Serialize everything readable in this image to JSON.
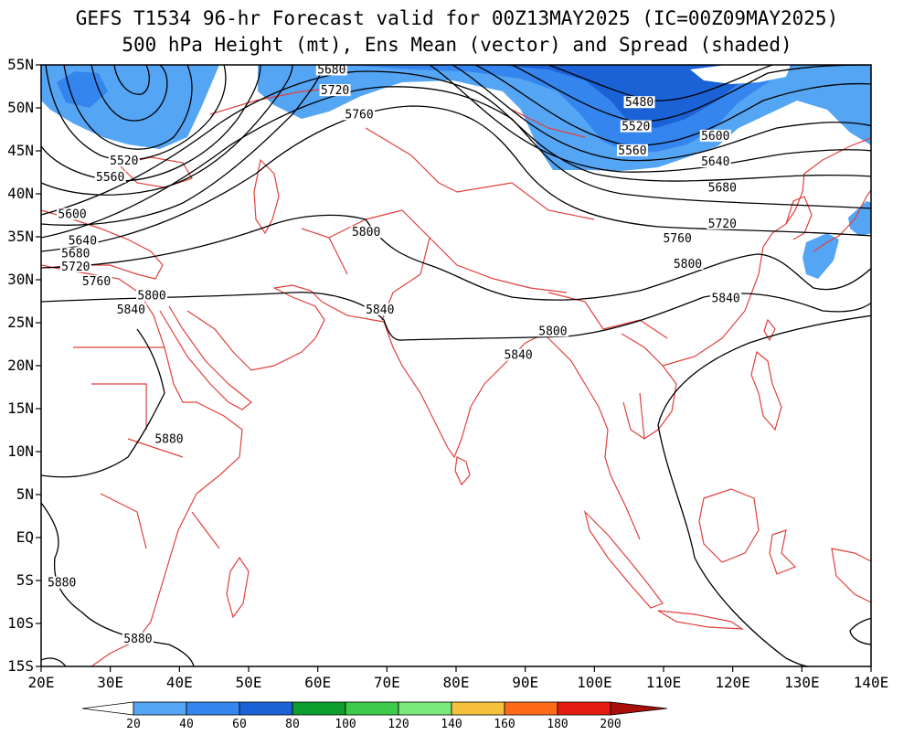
{
  "title": {
    "line1": "GEFS T1534 96-hr Forecast valid for 00Z13MAY2025 (IC=00Z09MAY2025)",
    "line2": "500 hPa Height (mt), Ens Mean (vector) and Spread (shaded)"
  },
  "map": {
    "lon_range": [
      20,
      140
    ],
    "lat_range": [
      -15,
      55
    ],
    "lon_ticks": [
      {
        "value": 20,
        "label": "20E"
      },
      {
        "value": 30,
        "label": "30E"
      },
      {
        "value": 40,
        "label": "40E"
      },
      {
        "value": 50,
        "label": "50E"
      },
      {
        "value": 60,
        "label": "60E"
      },
      {
        "value": 70,
        "label": "70E"
      },
      {
        "value": 80,
        "label": "80E"
      },
      {
        "value": 90,
        "label": "90E"
      },
      {
        "value": 100,
        "label": "100E"
      },
      {
        "value": 110,
        "label": "110E"
      },
      {
        "value": 120,
        "label": "120E"
      },
      {
        "value": 130,
        "label": "130E"
      },
      {
        "value": 140,
        "label": "140E"
      }
    ],
    "lat_ticks": [
      {
        "value": 55,
        "label": "55N"
      },
      {
        "value": 50,
        "label": "50N"
      },
      {
        "value": 45,
        "label": "45N"
      },
      {
        "value": 40,
        "label": "40N"
      },
      {
        "value": 35,
        "label": "35N"
      },
      {
        "value": 30,
        "label": "30N"
      },
      {
        "value": 25,
        "label": "25N"
      },
      {
        "value": 20,
        "label": "20N"
      },
      {
        "value": 15,
        "label": "15N"
      },
      {
        "value": 10,
        "label": "10N"
      },
      {
        "value": 5,
        "label": "5N"
      },
      {
        "value": 0,
        "label": "EQ"
      },
      {
        "value": -5,
        "label": "5S"
      },
      {
        "value": -10,
        "label": "10S"
      },
      {
        "value": -15,
        "label": "15S"
      }
    ],
    "coast_color": "#e0403c",
    "contour_color": "#000000",
    "contour_labels": [
      {
        "text": "5680",
        "lon": 62,
        "lat": 54.2
      },
      {
        "text": "5720",
        "lon": 62.5,
        "lat": 51.8
      },
      {
        "text": "5760",
        "lon": 66,
        "lat": 49.0
      },
      {
        "text": "5480",
        "lon": 106.5,
        "lat": 50.4
      },
      {
        "text": "5520",
        "lon": 106,
        "lat": 47.6
      },
      {
        "text": "5560",
        "lon": 105.5,
        "lat": 44.8
      },
      {
        "text": "5600",
        "lon": 117.5,
        "lat": 46.5
      },
      {
        "text": "5640",
        "lon": 117.5,
        "lat": 43.5
      },
      {
        "text": "5680",
        "lon": 118.5,
        "lat": 40.5
      },
      {
        "text": "5720",
        "lon": 118.5,
        "lat": 36.3
      },
      {
        "text": "5760",
        "lon": 112,
        "lat": 34.6
      },
      {
        "text": "5800",
        "lon": 113.5,
        "lat": 31.6
      },
      {
        "text": "5840",
        "lon": 119,
        "lat": 27.6
      },
      {
        "text": "5520",
        "lon": 32,
        "lat": 43.6
      },
      {
        "text": "5560",
        "lon": 30,
        "lat": 41.7
      },
      {
        "text": "5600",
        "lon": 24.5,
        "lat": 37.4
      },
      {
        "text": "5640",
        "lon": 26,
        "lat": 34.3
      },
      {
        "text": "5680",
        "lon": 25,
        "lat": 32.8
      },
      {
        "text": "5720",
        "lon": 25,
        "lat": 31.3
      },
      {
        "text": "5760",
        "lon": 28,
        "lat": 29.6
      },
      {
        "text": "5800",
        "lon": 36,
        "lat": 27.9
      },
      {
        "text": "5840",
        "lon": 33,
        "lat": 26.3
      },
      {
        "text": "5800",
        "lon": 67,
        "lat": 35.3
      },
      {
        "text": "5840",
        "lon": 69,
        "lat": 26.3
      },
      {
        "text": "5800",
        "lon": 94,
        "lat": 23.8
      },
      {
        "text": "5840",
        "lon": 89,
        "lat": 21.0
      },
      {
        "text": "5880",
        "lon": 38.5,
        "lat": 11.2
      },
      {
        "text": "5880",
        "lon": 23,
        "lat": -5.5
      },
      {
        "text": "5880",
        "lon": 34,
        "lat": -12.0
      }
    ]
  },
  "colorbar": {
    "labels": [
      "20",
      "40",
      "60",
      "80",
      "100",
      "120",
      "140",
      "160",
      "180",
      "200"
    ],
    "colors": [
      "#ffffff",
      "#55a5f5",
      "#3585ef",
      "#1a62d6",
      "#0d9c2e",
      "#3dc94a",
      "#7ae87a",
      "#f5c13c",
      "#ff6a1a",
      "#e61b10",
      "#a80e0a"
    ]
  }
}
